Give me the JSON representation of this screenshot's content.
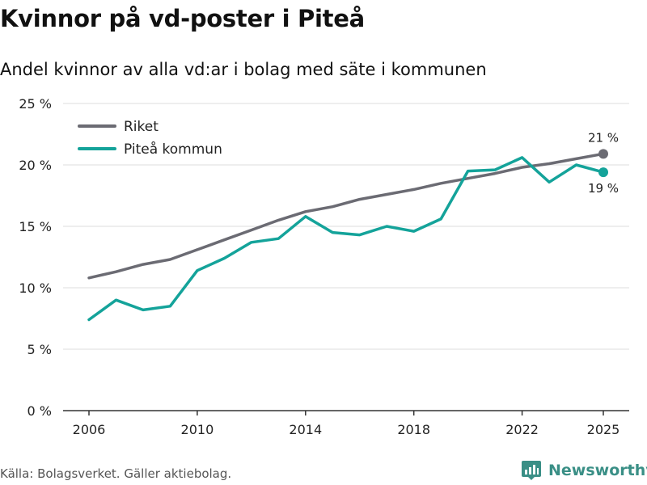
{
  "title": "Kvinnor på vd-poster i Piteå",
  "subtitle": "Andel kvinnor av alla vd:ar i bolag med säte i kommunen",
  "source": "Källa: Bolagsverket. Gäller aktiebolag.",
  "brand": {
    "name": "Newsworthy",
    "icon": "bar-chart-logo-icon"
  },
  "colors": {
    "riket": "#6b6b73",
    "pitea": "#14a39a",
    "grid": "#dddddd",
    "axis": "#333333",
    "brand": "#3a8f86"
  },
  "chart_data": {
    "type": "line",
    "title": "Kvinnor på vd-poster i Piteå",
    "subtitle": "Andel kvinnor av alla vd:ar i bolag med säte i kommunen",
    "xlabel": "",
    "ylabel": "",
    "x": [
      2006,
      2007,
      2008,
      2009,
      2010,
      2011,
      2012,
      2013,
      2014,
      2015,
      2016,
      2017,
      2018,
      2019,
      2020,
      2021,
      2022,
      2023,
      2024,
      2025
    ],
    "xticks": [
      "2006",
      "2010",
      "2014",
      "2018",
      "2022",
      "2025"
    ],
    "yticks": [
      "0 %",
      "5 %",
      "10 %",
      "15 %",
      "20 %",
      "25 %"
    ],
    "ylim": [
      0,
      25
    ],
    "grid": true,
    "legend": "top-left",
    "series": [
      {
        "name": "Riket",
        "values": [
          10.8,
          11.3,
          11.9,
          12.3,
          13.1,
          13.9,
          14.7,
          15.5,
          16.2,
          16.6,
          17.2,
          17.6,
          18.0,
          18.5,
          18.9,
          19.3,
          19.8,
          20.1,
          20.5,
          20.9
        ],
        "end_label": "21 %"
      },
      {
        "name": "Piteå kommun",
        "values": [
          7.4,
          9.0,
          8.2,
          8.5,
          11.4,
          12.4,
          13.7,
          14.0,
          15.8,
          14.5,
          14.3,
          15.0,
          14.6,
          15.6,
          19.5,
          19.6,
          20.6,
          18.6,
          20.0,
          19.4
        ],
        "end_label": "19 %"
      }
    ]
  }
}
